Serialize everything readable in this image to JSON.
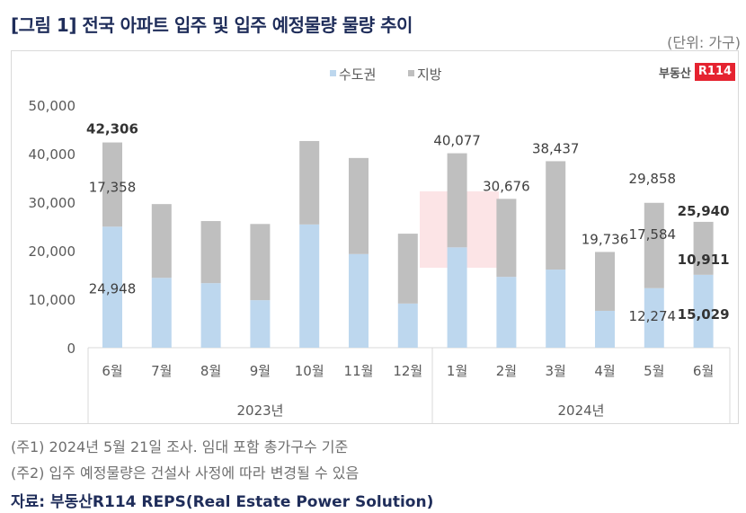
{
  "header": {
    "title": "[그림 1] 전국 아파트 입주 및 입주 예정물량 물량 추이",
    "unit": "(단위: 가구)"
  },
  "logo": {
    "text": "부동산",
    "badge": "R114"
  },
  "colors": {
    "capital": "#bdd7ee",
    "regional": "#bfbfbf",
    "title": "#1f2d5a",
    "logo_red": "#e52330"
  },
  "chart_data": {
    "type": "bar",
    "stacked": true,
    "title": "",
    "ylim": [
      0,
      50000
    ],
    "yticks": [
      "0",
      "10,000",
      "20,000",
      "30,000",
      "40,000",
      "50,000"
    ],
    "ytick_values": [
      0,
      10000,
      20000,
      30000,
      40000,
      50000
    ],
    "categories": [
      "6월",
      "7월",
      "8월",
      "9월",
      "10월",
      "11월",
      "12월",
      "1월",
      "2월",
      "3월",
      "4월",
      "5월",
      "6월"
    ],
    "groups": [
      {
        "label": "2023년",
        "count": 7
      },
      {
        "label": "2024년",
        "count": 6
      }
    ],
    "legend": [
      "수도권",
      "지방"
    ],
    "legend_position": "top",
    "series": [
      {
        "name": "수도권",
        "values": [
          24948,
          14400,
          13300,
          9800,
          25400,
          19300,
          9100,
          20700,
          14600,
          16100,
          7600,
          12274,
          15029
        ]
      },
      {
        "name": "지방",
        "values": [
          17358,
          15200,
          12800,
          15700,
          17200,
          19800,
          14400,
          19377,
          16076,
          22337,
          12136,
          17584,
          10911
        ]
      }
    ],
    "labels": [
      {
        "index": 0,
        "total": "42,306",
        "capital": "24,948",
        "regional": "17,358",
        "bold": true,
        "bold_parts": false
      },
      {
        "index": 7,
        "total": "40,077"
      },
      {
        "index": 8,
        "total": "30,676"
      },
      {
        "index": 9,
        "total": "38,437"
      },
      {
        "index": 10,
        "total": "19,736"
      },
      {
        "index": 11,
        "total": "29,858",
        "capital": "12,274",
        "regional": "17,584"
      },
      {
        "index": 12,
        "total": "25,940",
        "capital": "15,029",
        "regional": "10,911",
        "bold": true,
        "bold_parts": true
      }
    ]
  },
  "notes": {
    "note1": "(주1) 2024년 5월 21일 조사. 임대 포함 총가구수 기준",
    "note2": "(주2) 입주 예정물량은 건설사 사정에 따라 변경될 수 있음",
    "source": "자료: 부동산R114 REPS(Real Estate Power Solution)"
  }
}
